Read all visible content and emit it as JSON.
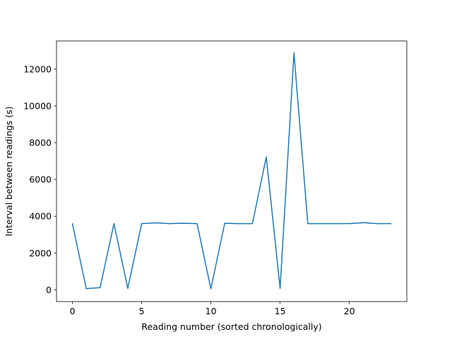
{
  "chart_data": {
    "type": "line",
    "xlabel": "Reading number (sorted chronologically)",
    "ylabel": "Interval between readings (s)",
    "xlim": [
      -1.15,
      24.15
    ],
    "ylim": [
      -640,
      13530
    ],
    "xticks": [
      0,
      5,
      10,
      15,
      20
    ],
    "yticks": [
      0,
      2000,
      4000,
      6000,
      8000,
      10000,
      12000
    ],
    "grid": false,
    "line_color": "#1f77b4",
    "series": [
      {
        "x": [
          0,
          1,
          2,
          3,
          4,
          5,
          6,
          7,
          8,
          9,
          10,
          11,
          12,
          13,
          14,
          15,
          16,
          17,
          18,
          19,
          20,
          21,
          22,
          23
        ],
        "values": [
          3600,
          60,
          120,
          3600,
          80,
          3600,
          3640,
          3600,
          3620,
          3600,
          60,
          3620,
          3600,
          3600,
          7220,
          80,
          12880,
          3600,
          3600,
          3600,
          3600,
          3650,
          3600,
          3600
        ]
      }
    ]
  }
}
